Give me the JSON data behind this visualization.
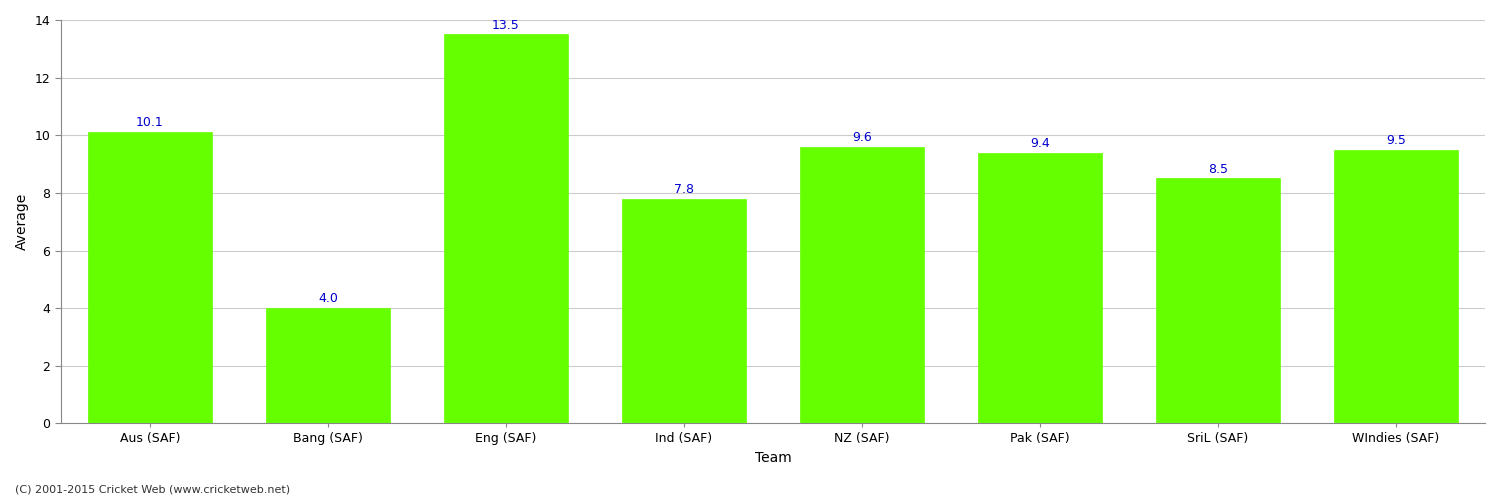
{
  "categories": [
    "Aus (SAF)",
    "Bang (SAF)",
    "Eng (SAF)",
    "Ind (SAF)",
    "NZ (SAF)",
    "Pak (SAF)",
    "SriL (SAF)",
    "WIndies (SAF)"
  ],
  "values": [
    10.1,
    4.0,
    13.5,
    7.8,
    9.6,
    9.4,
    8.5,
    9.5
  ],
  "bar_color": "#66ff00",
  "bar_edge_color": "#66ff00",
  "value_label_color": "#0000cc",
  "xlabel": "Team",
  "ylabel": "Average",
  "ylim": [
    0,
    14
  ],
  "yticks": [
    0,
    2,
    4,
    6,
    8,
    10,
    12,
    14
  ],
  "grid_color": "#cccccc",
  "background_color": "#ffffff",
  "footer_text": "(C) 2001-2015 Cricket Web (www.cricketweb.net)",
  "value_fontsize": 9,
  "axis_label_fontsize": 10,
  "tick_fontsize": 9,
  "footer_fontsize": 8
}
